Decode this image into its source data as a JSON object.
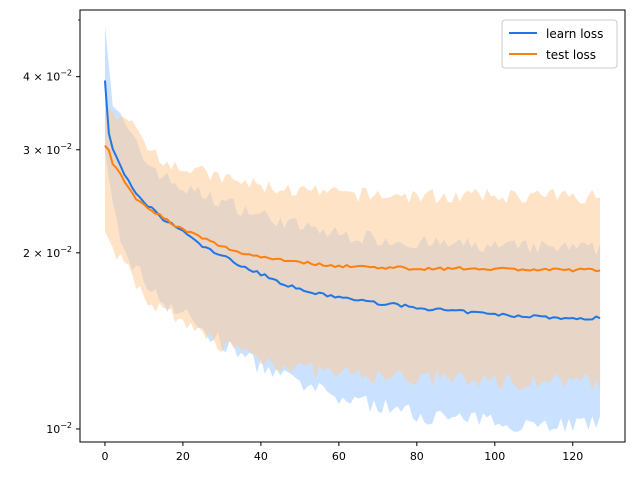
{
  "chart_data": {
    "type": "line",
    "title": "",
    "xlabel": "",
    "ylabel": "",
    "y_scale": "log",
    "xlim": [
      -6.4,
      133.4
    ],
    "ylim": [
      0.0095,
      0.052
    ],
    "grid": false,
    "legend_position": "top-right",
    "x_ticks": [
      0,
      20,
      40,
      60,
      80,
      100,
      120
    ],
    "x_tick_labels": [
      "0",
      "20",
      "40",
      "60",
      "80",
      "100",
      "120"
    ],
    "y_major_ticks": [
      0.01,
      0.02,
      0.03,
      0.04
    ],
    "y_minor_ticks": [
      0.05
    ],
    "y_tick_labels": [
      {
        "base": "4 × 10",
        "exp": "−2"
      },
      {
        "base": "3 × 10",
        "exp": "−2"
      },
      {
        "base": "2 × 10",
        "exp": "−2"
      },
      {
        "base": "10",
        "exp": "−2"
      }
    ],
    "series": [
      {
        "name": "learn loss",
        "color": "#1f77e6",
        "band_color": "#9ecbff",
        "anchors": [
          [
            0,
            0.0395
          ],
          [
            1,
            0.032
          ],
          [
            2,
            0.03
          ],
          [
            4,
            0.0282
          ],
          [
            6,
            0.0265
          ],
          [
            8,
            0.0252
          ],
          [
            10,
            0.0243
          ],
          [
            12,
            0.0238
          ],
          [
            15,
            0.0228
          ],
          [
            18,
            0.0222
          ],
          [
            20,
            0.0218
          ],
          [
            25,
            0.0205
          ],
          [
            30,
            0.0198
          ],
          [
            35,
            0.019
          ],
          [
            40,
            0.0184
          ],
          [
            45,
            0.0178
          ],
          [
            50,
            0.0173
          ],
          [
            55,
            0.017
          ],
          [
            60,
            0.0168
          ],
          [
            65,
            0.0166
          ],
          [
            70,
            0.0164
          ],
          [
            75,
            0.0163
          ],
          [
            80,
            0.0161
          ],
          [
            85,
            0.016
          ],
          [
            90,
            0.0159
          ],
          [
            95,
            0.0158
          ],
          [
            100,
            0.0157
          ],
          [
            105,
            0.0156
          ],
          [
            110,
            0.0156
          ],
          [
            115,
            0.0155
          ],
          [
            120,
            0.0154
          ],
          [
            127,
            0.0155
          ]
        ],
        "band_upper": [
          [
            0,
            0.0505
          ],
          [
            2,
            0.036
          ],
          [
            5,
            0.033
          ],
          [
            10,
            0.029
          ],
          [
            15,
            0.027
          ],
          [
            20,
            0.0258
          ],
          [
            30,
            0.0245
          ],
          [
            40,
            0.0232
          ],
          [
            50,
            0.0222
          ],
          [
            60,
            0.0215
          ],
          [
            80,
            0.0208
          ],
          [
            100,
            0.0205
          ],
          [
            127,
            0.0203
          ]
        ],
        "band_lower": [
          [
            0,
            0.029
          ],
          [
            2,
            0.024
          ],
          [
            5,
            0.02
          ],
          [
            10,
            0.018
          ],
          [
            15,
            0.0165
          ],
          [
            20,
            0.0158
          ],
          [
            25,
            0.0148
          ],
          [
            30,
            0.014
          ],
          [
            40,
            0.0128
          ],
          [
            50,
            0.0119
          ],
          [
            60,
            0.0113
          ],
          [
            70,
            0.011
          ],
          [
            80,
            0.0106
          ],
          [
            90,
            0.0104
          ],
          [
            100,
            0.0103
          ],
          [
            110,
            0.0102
          ],
          [
            127,
            0.0102
          ]
        ]
      },
      {
        "name": "test loss",
        "color": "#ff7f0e",
        "band_color": "#ffcc99",
        "anchors": [
          [
            0,
            0.0305
          ],
          [
            1,
            0.03
          ],
          [
            2,
            0.0285
          ],
          [
            4,
            0.0272
          ],
          [
            6,
            0.0258
          ],
          [
            8,
            0.0248
          ],
          [
            10,
            0.0242
          ],
          [
            14,
            0.0232
          ],
          [
            17,
            0.0225
          ],
          [
            20,
            0.0219
          ],
          [
            25,
            0.0212
          ],
          [
            30,
            0.0205
          ],
          [
            35,
            0.02
          ],
          [
            40,
            0.0197
          ],
          [
            45,
            0.0195
          ],
          [
            50,
            0.0193
          ],
          [
            55,
            0.0191
          ],
          [
            60,
            0.019
          ],
          [
            70,
            0.0189
          ],
          [
            80,
            0.0188
          ],
          [
            90,
            0.0188
          ],
          [
            100,
            0.0188
          ],
          [
            110,
            0.0187
          ],
          [
            120,
            0.0187
          ],
          [
            127,
            0.0187
          ]
        ],
        "band_upper": [
          [
            0,
            0.0355
          ],
          [
            5,
            0.034
          ],
          [
            10,
            0.031
          ],
          [
            15,
            0.029
          ],
          [
            20,
            0.028
          ],
          [
            30,
            0.0268
          ],
          [
            40,
            0.026
          ],
          [
            50,
            0.0255
          ],
          [
            60,
            0.0252
          ],
          [
            80,
            0.025
          ],
          [
            100,
            0.025
          ],
          [
            127,
            0.025
          ]
        ],
        "band_lower": [
          [
            0,
            0.0225
          ],
          [
            3,
            0.02
          ],
          [
            6,
            0.0185
          ],
          [
            10,
            0.017
          ],
          [
            15,
            0.0158
          ],
          [
            20,
            0.015
          ],
          [
            25,
            0.0145
          ],
          [
            30,
            0.014
          ],
          [
            40,
            0.0132
          ],
          [
            50,
            0.0127
          ],
          [
            60,
            0.0124
          ],
          [
            80,
            0.0122
          ],
          [
            100,
            0.0121
          ],
          [
            127,
            0.012
          ]
        ]
      }
    ],
    "overlap_color": "#d6c6c4"
  }
}
